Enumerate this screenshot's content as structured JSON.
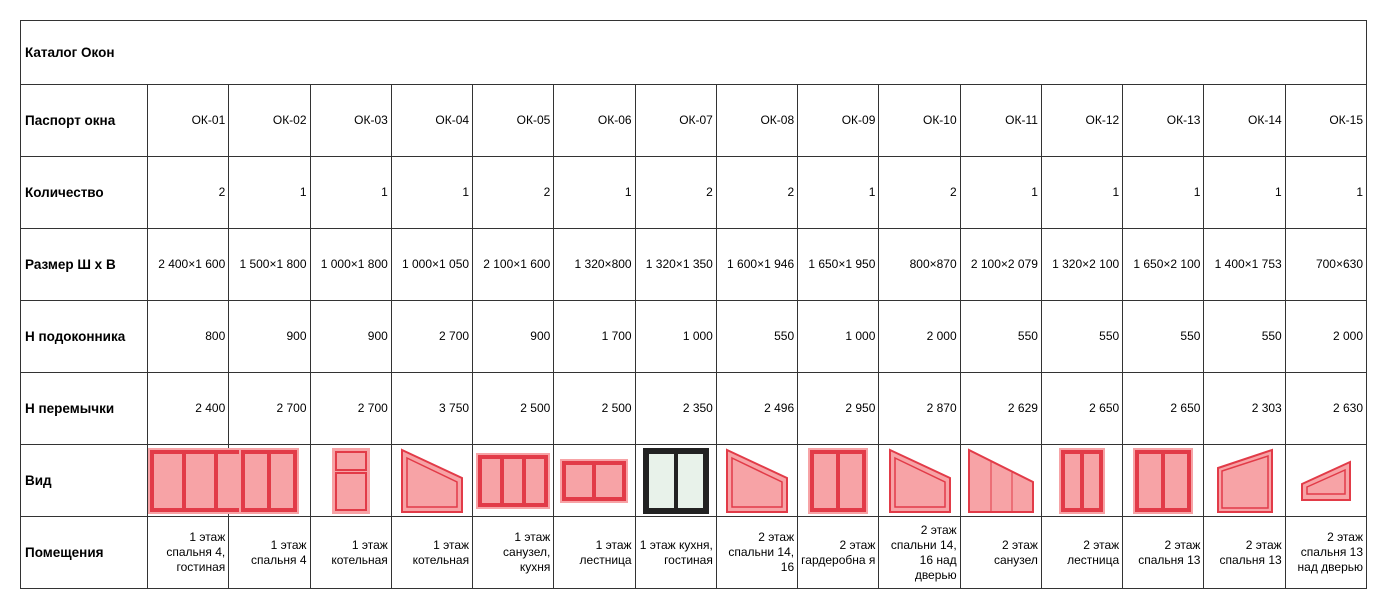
{
  "title": "Каталог Окон",
  "labels": {
    "passport": "Паспорт окна",
    "qty": "Количество",
    "size": "Размер Ш х В",
    "sill": "Н подоконника",
    "lintel": "Н перемычки",
    "view": "Вид",
    "rooms": "Помещения"
  },
  "colors": {
    "fill": "#f7a3a6",
    "stroke": "#e23b48",
    "dark": "#222222",
    "glass": "#e8f2ea"
  },
  "windows": [
    {
      "id": "ОК-01",
      "qty": "2",
      "size": "2 400×1 600",
      "sill": "800",
      "lintel": "2 400",
      "view": "triple-wide",
      "rooms": "1 этаж спальня 4, гостиная"
    },
    {
      "id": "ОК-02",
      "qty": "1",
      "size": "1 500×1 800",
      "sill": "900",
      "lintel": "2 700",
      "view": "double-tall",
      "rooms": "1 этаж спальня 4"
    },
    {
      "id": "ОК-03",
      "qty": "1",
      "size": "1 000×1 800",
      "sill": "900",
      "lintel": "2 700",
      "view": "transom",
      "rooms": "1 этаж котельная"
    },
    {
      "id": "ОК-04",
      "qty": "1",
      "size": "1 000×1 050",
      "sill": "2 700",
      "lintel": "3 750",
      "view": "slope-left-high",
      "rooms": "1 этаж котельная"
    },
    {
      "id": "ОК-05",
      "qty": "2",
      "size": "2 100×1 600",
      "sill": "900",
      "lintel": "2 500",
      "view": "triple",
      "rooms": "1 этаж санузел, кухня"
    },
    {
      "id": "ОК-06",
      "qty": "1",
      "size": "1 320×800",
      "sill": "1 700",
      "lintel": "2 500",
      "view": "double-wide",
      "rooms": "1 этаж лестница"
    },
    {
      "id": "ОК-07",
      "qty": "2",
      "size": "1 320×1 350",
      "sill": "1 000",
      "lintel": "2 350",
      "view": "double-dark",
      "rooms": "1 этаж кухня, гостиная"
    },
    {
      "id": "ОК-08",
      "qty": "2",
      "size": "1 600×1 946",
      "sill": "550",
      "lintel": "2 496",
      "view": "slope-left-high",
      "rooms": "2 этаж спальни 14, 16"
    },
    {
      "id": "ОК-09",
      "qty": "1",
      "size": "1 650×1 950",
      "sill": "1 000",
      "lintel": "2 950",
      "view": "double-tall",
      "rooms": "2 этаж гардеробна я"
    },
    {
      "id": "ОК-10",
      "qty": "2",
      "size": "800×870",
      "sill": "2 000",
      "lintel": "2 870",
      "view": "slope-left-high",
      "rooms": "2 этаж спальни 14, 16 над дверью"
    },
    {
      "id": "ОК-11",
      "qty": "1",
      "size": "2 100×2 079",
      "sill": "550",
      "lintel": "2 629",
      "view": "slope-triple",
      "rooms": "2 этаж санузел"
    },
    {
      "id": "ОК-12",
      "qty": "1",
      "size": "1 320×2 100",
      "sill": "550",
      "lintel": "2 650",
      "view": "double-narrow",
      "rooms": "2 этаж лестница"
    },
    {
      "id": "ОК-13",
      "qty": "1",
      "size": "1 650×2 100",
      "sill": "550",
      "lintel": "2 650",
      "view": "double-tall",
      "rooms": "2 этаж спальня 13"
    },
    {
      "id": "ОК-14",
      "qty": "1",
      "size": "1 400×1 753",
      "sill": "550",
      "lintel": "2 303",
      "view": "slope-right-high",
      "rooms": "2 этаж спальня 13"
    },
    {
      "id": "ОК-15",
      "qty": "1",
      "size": "700×630",
      "sill": "2 000",
      "lintel": "2 630",
      "view": "slope-right-small",
      "rooms": "2 этаж спальня 13 над дверью"
    }
  ]
}
